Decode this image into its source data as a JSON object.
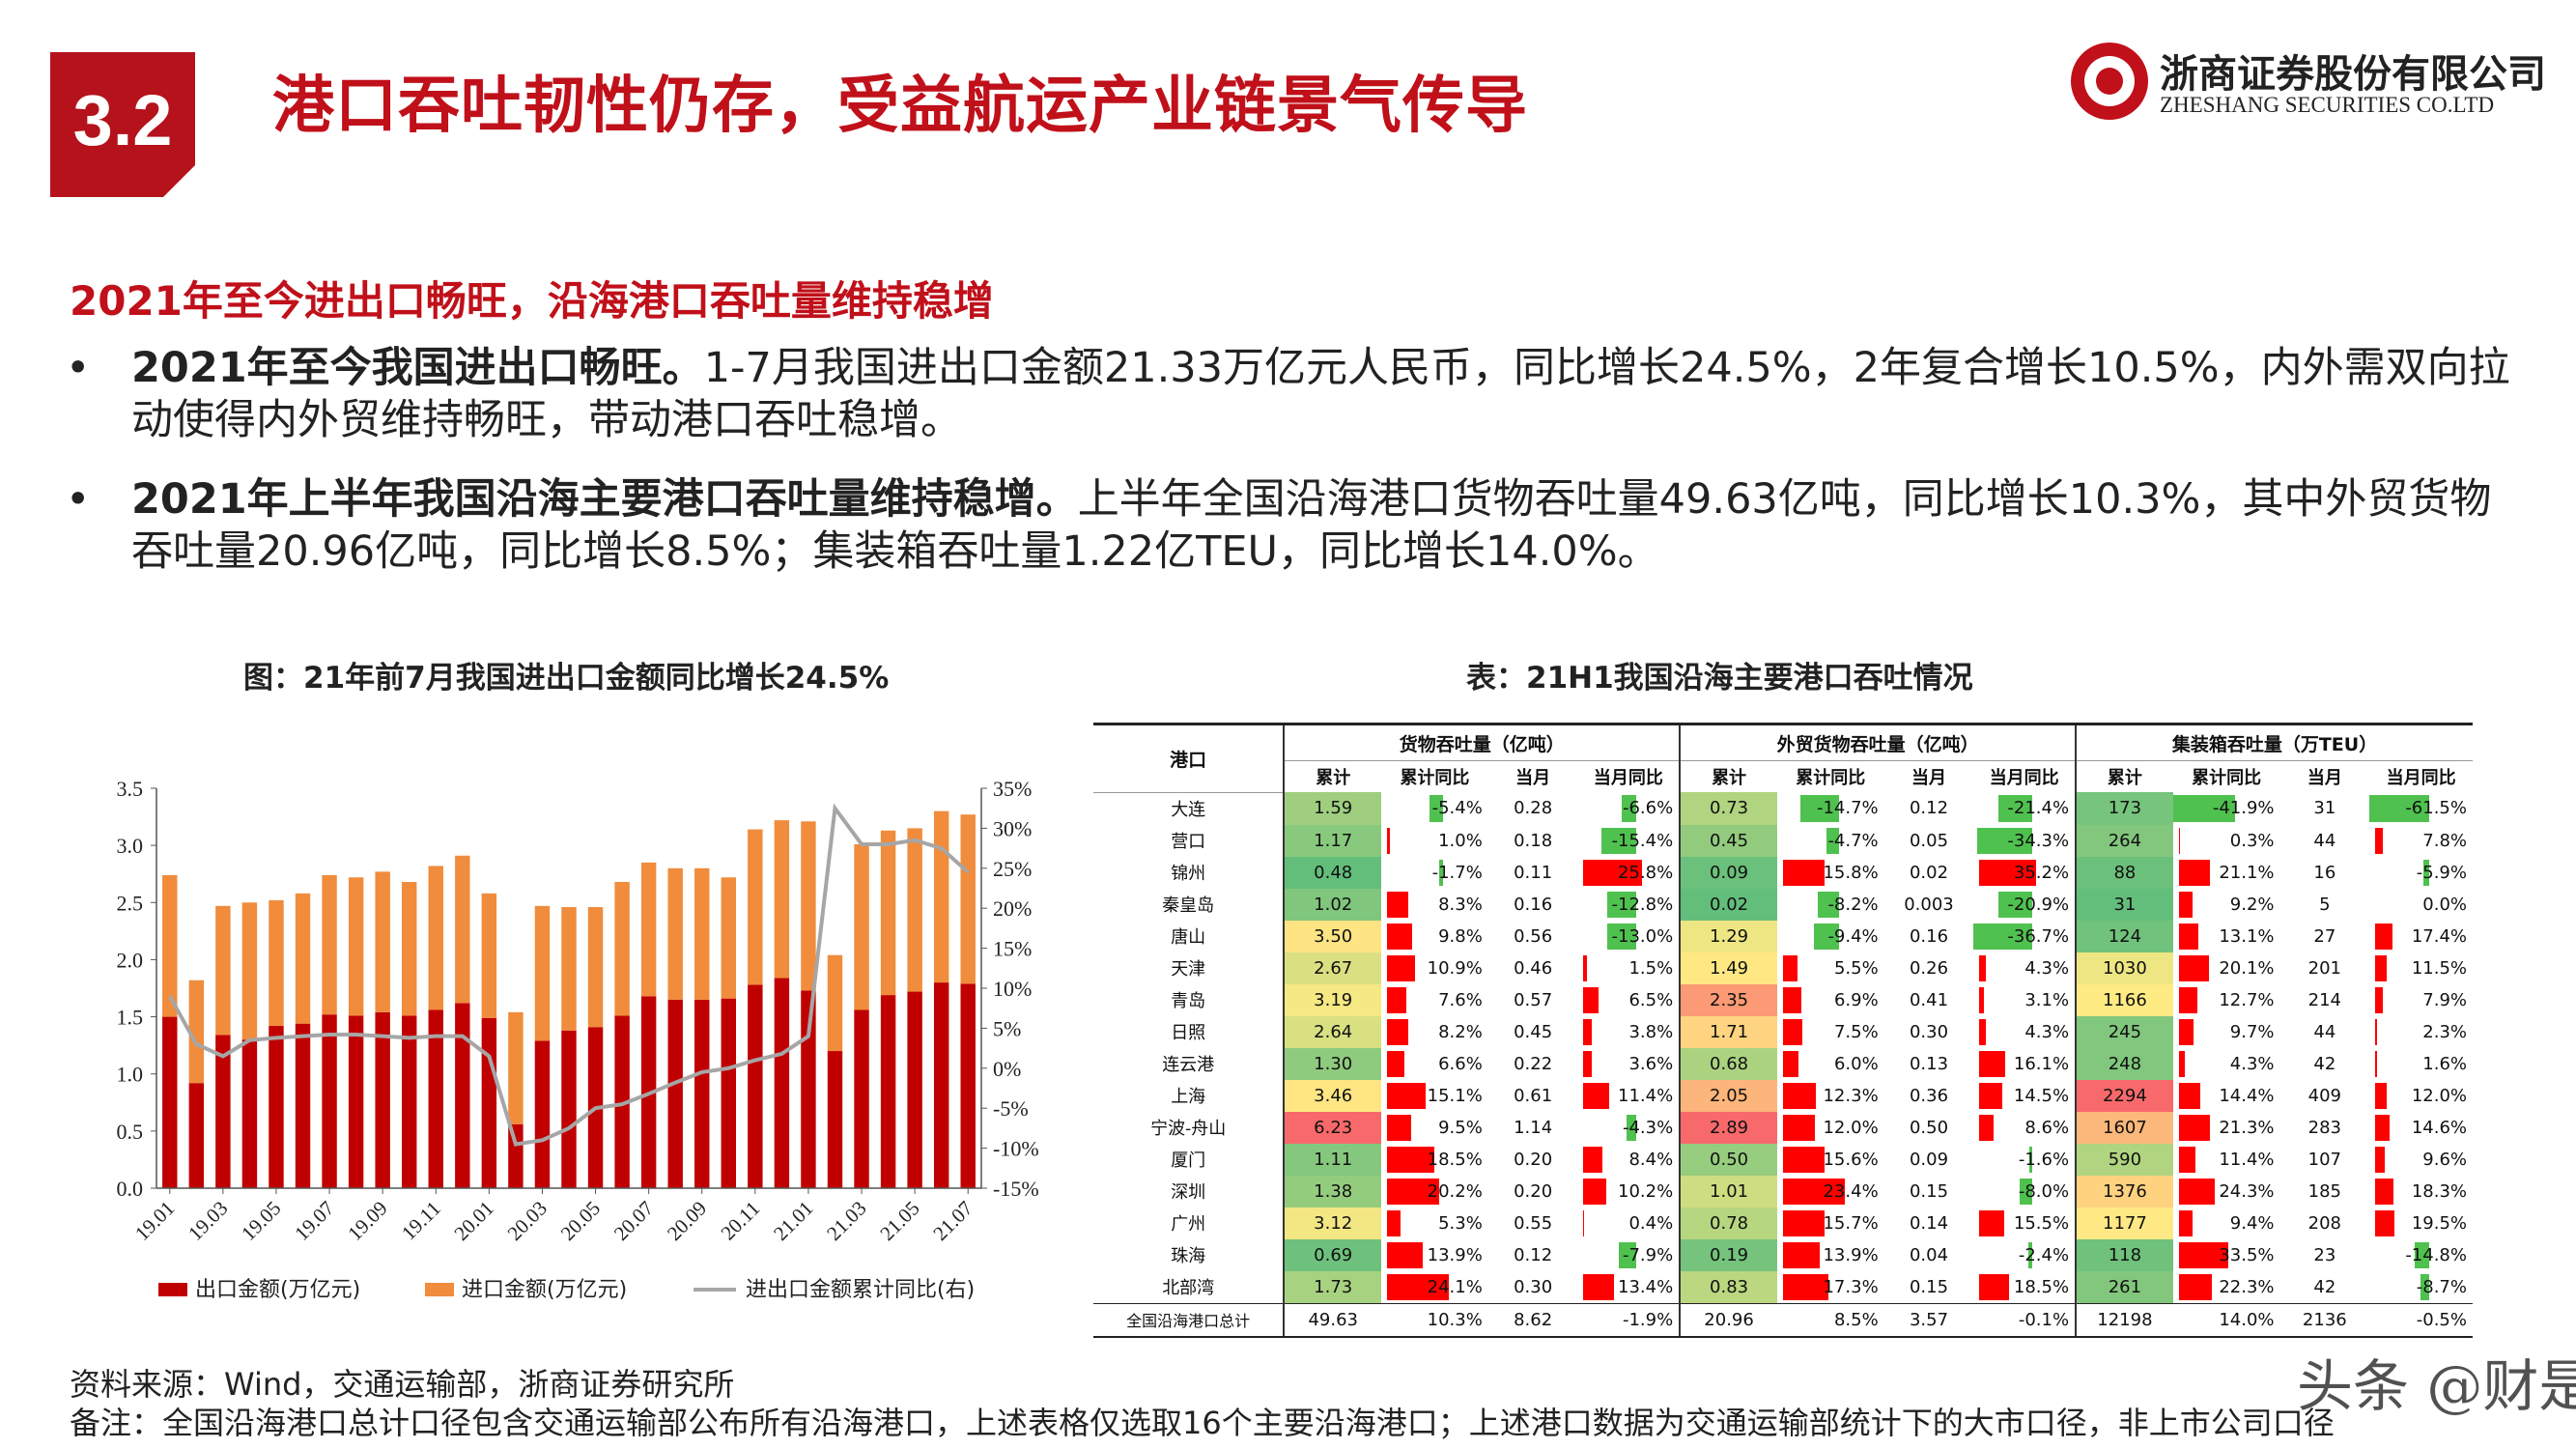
{
  "header": {
    "section_number": "3.2",
    "title": "港口吞吐韧性仍存，受益航运产业链景气传导",
    "logo_cn": "浙商证券股份有限公司",
    "logo_en": "ZHESHANG SECURITIES CO.LTD",
    "brand_color": "#c0101a"
  },
  "subheading": "2021年至今进出口畅旺，沿海港口吞吐量维持稳增",
  "bullets": [
    {
      "bold": "2021年至今我国进出口畅旺。",
      "text": "1-7月我国进出口金额21.33万亿元人民币，同比增长24.5%，2年复合增长10.5%，内外需双向拉动使得内外贸维持畅旺，带动港口吞吐稳增。"
    },
    {
      "bold": "2021年上半年我国沿海主要港口吞吐量维持稳增。",
      "text": "上半年全国沿海港口货物吞吐量49.63亿吨，同比增长10.3%，其中外贸货物吞吐量20.96亿吨，同比增长8.5%；集装箱吞吐量1.22亿TEU，同比增长14.0%。"
    }
  ],
  "figure_title": "图：21年前7月我国进出口金额同比增长24.5%",
  "table_title": "表：21H1我国沿海主要港口吞吐情况",
  "chart_data": {
    "type": "bar",
    "stacked": true,
    "categories": [
      "19.01",
      "19.02",
      "19.03",
      "19.04",
      "19.05",
      "19.06",
      "19.07",
      "19.08",
      "19.09",
      "19.10",
      "19.11",
      "19.12",
      "20.01",
      "20.02",
      "20.03",
      "20.04",
      "20.05",
      "20.06",
      "20.07",
      "20.08",
      "20.09",
      "20.10",
      "20.11",
      "20.12",
      "21.01",
      "21.02",
      "21.03",
      "21.04",
      "21.05",
      "21.06",
      "21.07"
    ],
    "tick_labels": [
      "19.01",
      "19.03",
      "19.05",
      "19.07",
      "19.09",
      "19.11",
      "20.01",
      "20.03",
      "20.05",
      "20.07",
      "20.09",
      "20.11",
      "21.01",
      "21.03",
      "21.05",
      "21.07"
    ],
    "series": [
      {
        "name": "出口金额(万亿元)",
        "type": "bar",
        "color": "#c00000",
        "values": [
          1.5,
          0.92,
          1.34,
          1.3,
          1.42,
          1.44,
          1.52,
          1.51,
          1.54,
          1.51,
          1.56,
          1.62,
          1.49,
          0.56,
          1.29,
          1.38,
          1.41,
          1.51,
          1.68,
          1.65,
          1.65,
          1.66,
          1.78,
          1.84,
          1.73,
          1.2,
          1.56,
          1.69,
          1.72,
          1.8,
          1.79
        ]
      },
      {
        "name": "进口金额(万亿元)",
        "type": "bar",
        "color": "#f08c3c",
        "values": [
          1.24,
          0.9,
          1.13,
          1.2,
          1.1,
          1.14,
          1.22,
          1.21,
          1.23,
          1.17,
          1.26,
          1.29,
          1.09,
          0.98,
          1.18,
          1.08,
          1.05,
          1.17,
          1.17,
          1.15,
          1.15,
          1.06,
          1.36,
          1.38,
          1.48,
          0.84,
          1.45,
          1.44,
          1.43,
          1.5,
          1.48
        ]
      },
      {
        "name": "进出口金额累计同比(右)",
        "type": "line",
        "axis": "right",
        "color": "#a6a6a6",
        "values": [
          9.0,
          3.0,
          1.5,
          3.5,
          3.8,
          4.0,
          4.2,
          4.2,
          4.0,
          3.8,
          4.0,
          4.0,
          1.5,
          -9.5,
          -9.0,
          -7.5,
          -5.0,
          -4.5,
          -3.2,
          -1.8,
          -0.5,
          0.0,
          1.0,
          1.8,
          4.0,
          32.5,
          28.0,
          28.0,
          28.5,
          27.5,
          24.5
        ]
      }
    ],
    "ylim_left": [
      0,
      3.5
    ],
    "ytick_left": [
      "0.0",
      "0.5",
      "1.0",
      "1.5",
      "2.0",
      "2.5",
      "3.0",
      "3.5"
    ],
    "ylim_right": [
      -15,
      35
    ],
    "ytick_right": [
      "-15%",
      "-10%",
      "-5%",
      "0%",
      "5%",
      "10%",
      "15%",
      "20%",
      "25%",
      "30%",
      "35%"
    ],
    "legend": [
      "出口金额(万亿元)",
      "进口金额(万亿元)",
      "进出口金额累计同比(右)"
    ],
    "legend_position": "bottom",
    "grid": false
  },
  "table": {
    "groups": [
      "货物吞吐量（亿吨）",
      "外贸货物吞吐量（亿吨）",
      "集装箱吞吐量（万TEU）"
    ],
    "port_header": "港口",
    "subheaders": [
      "累计",
      "累计同比",
      "当月",
      "当月同比",
      "累计",
      "累计同比",
      "当月",
      "当月同比",
      "累计",
      "累计同比",
      "当月",
      "当月同比"
    ],
    "rows": [
      {
        "port": "大连",
        "c": [
          "1.59",
          "-5.4%",
          "0.28",
          "-6.6%",
          "0.73",
          "-14.7%",
          "0.12",
          "-21.4%",
          "173",
          "-41.9%",
          "31",
          "-61.5%"
        ]
      },
      {
        "port": "营口",
        "c": [
          "1.17",
          "1.0%",
          "0.18",
          "-15.4%",
          "0.45",
          "-4.7%",
          "0.05",
          "-34.3%",
          "264",
          "0.3%",
          "44",
          "7.8%"
        ]
      },
      {
        "port": "锦州",
        "c": [
          "0.48",
          "-1.7%",
          "0.11",
          "25.8%",
          "0.09",
          "15.8%",
          "0.02",
          "35.2%",
          "88",
          "21.1%",
          "16",
          "-5.9%"
        ]
      },
      {
        "port": "秦皇岛",
        "c": [
          "1.02",
          "8.3%",
          "0.16",
          "-12.8%",
          "0.02",
          "-8.2%",
          "0.003",
          "-20.9%",
          "31",
          "9.2%",
          "5",
          "0.0%"
        ]
      },
      {
        "port": "唐山",
        "c": [
          "3.50",
          "9.8%",
          "0.56",
          "-13.0%",
          "1.29",
          "-9.4%",
          "0.16",
          "-36.7%",
          "124",
          "13.1%",
          "27",
          "17.4%"
        ]
      },
      {
        "port": "天津",
        "c": [
          "2.67",
          "10.9%",
          "0.46",
          "1.5%",
          "1.49",
          "5.5%",
          "0.26",
          "4.3%",
          "1030",
          "20.1%",
          "201",
          "11.5%"
        ]
      },
      {
        "port": "青岛",
        "c": [
          "3.19",
          "7.6%",
          "0.57",
          "6.5%",
          "2.35",
          "6.9%",
          "0.41",
          "3.1%",
          "1166",
          "12.7%",
          "214",
          "7.9%"
        ]
      },
      {
        "port": "日照",
        "c": [
          "2.64",
          "8.2%",
          "0.45",
          "3.8%",
          "1.71",
          "7.5%",
          "0.30",
          "4.3%",
          "245",
          "9.7%",
          "44",
          "2.3%"
        ]
      },
      {
        "port": "连云港",
        "c": [
          "1.30",
          "6.6%",
          "0.22",
          "3.6%",
          "0.68",
          "6.0%",
          "0.13",
          "16.1%",
          "248",
          "4.3%",
          "42",
          "1.6%"
        ]
      },
      {
        "port": "上海",
        "c": [
          "3.46",
          "15.1%",
          "0.61",
          "11.4%",
          "2.05",
          "12.3%",
          "0.36",
          "14.5%",
          "2294",
          "14.4%",
          "409",
          "12.0%"
        ]
      },
      {
        "port": "宁波-舟山",
        "c": [
          "6.23",
          "9.5%",
          "1.14",
          "-4.3%",
          "2.89",
          "12.0%",
          "0.50",
          "8.6%",
          "1607",
          "21.3%",
          "283",
          "14.6%"
        ]
      },
      {
        "port": "厦门",
        "c": [
          "1.11",
          "18.5%",
          "0.20",
          "8.4%",
          "0.50",
          "15.6%",
          "0.09",
          "-1.6%",
          "590",
          "11.4%",
          "107",
          "9.6%"
        ]
      },
      {
        "port": "深圳",
        "c": [
          "1.38",
          "20.2%",
          "0.20",
          "10.2%",
          "1.01",
          "23.4%",
          "0.15",
          "-8.0%",
          "1376",
          "24.3%",
          "185",
          "18.3%"
        ]
      },
      {
        "port": "广州",
        "c": [
          "3.12",
          "5.3%",
          "0.55",
          "0.4%",
          "0.78",
          "15.7%",
          "0.14",
          "15.5%",
          "1177",
          "9.4%",
          "208",
          "19.5%"
        ]
      },
      {
        "port": "珠海",
        "c": [
          "0.69",
          "13.9%",
          "0.12",
          "-7.9%",
          "0.19",
          "13.9%",
          "0.04",
          "-2.4%",
          "118",
          "33.5%",
          "23",
          "-14.8%"
        ]
      },
      {
        "port": "北部湾",
        "c": [
          "1.73",
          "24.1%",
          "0.30",
          "13.4%",
          "0.83",
          "17.3%",
          "0.15",
          "18.5%",
          "261",
          "22.3%",
          "42",
          "-8.7%"
        ]
      }
    ],
    "total_row": {
      "port": "全国沿海港口总计",
      "c": [
        "49.63",
        "10.3%",
        "8.62",
        "-1.9%",
        "20.96",
        "8.5%",
        "3.57",
        "-0.1%",
        "12198",
        "14.0%",
        "2136",
        "-0.5%"
      ]
    }
  },
  "source": "资料来源：Wind，交通运输部，浙商证券研究所",
  "note": "备注：全国沿海港口总计口径包含交通运输部公布所有沿海港口，上述表格仅选取16个主要沿海港口；上述港口数据为交通运输部统计下的大市口径，非上市公司口径",
  "watermark": "头条 @财是"
}
